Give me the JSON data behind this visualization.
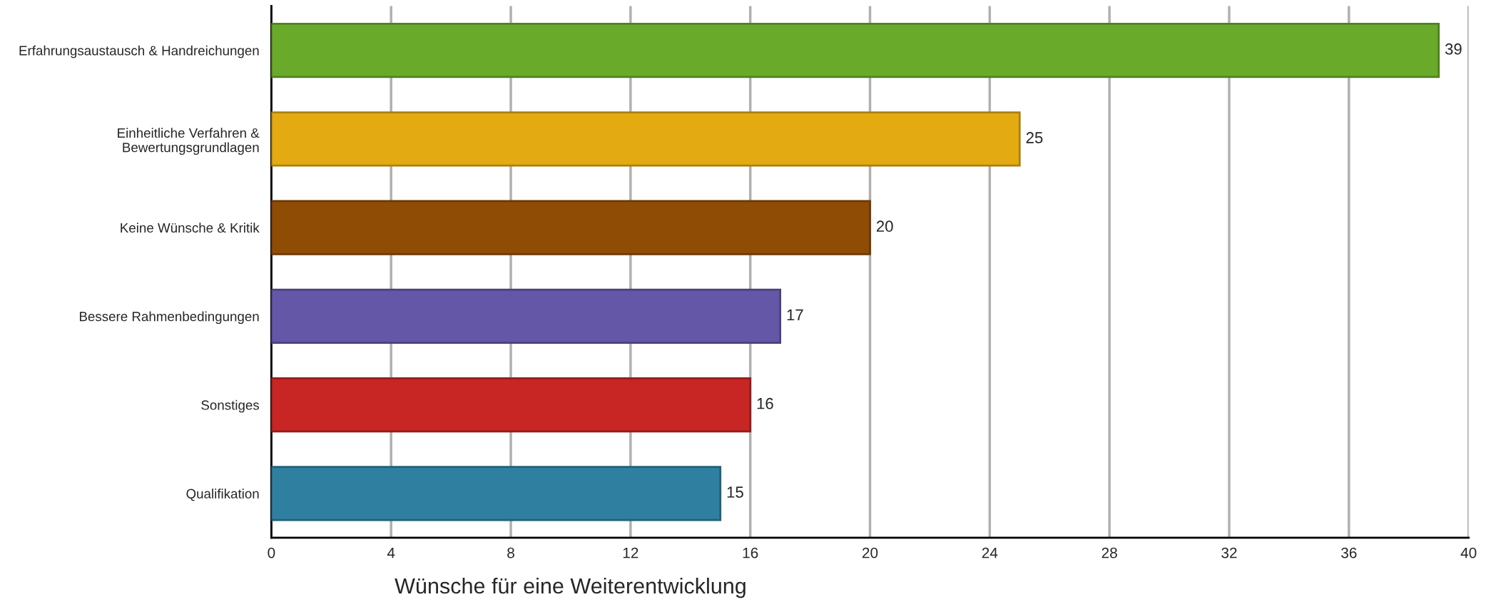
{
  "chart_data": {
    "type": "bar",
    "orientation": "horizontal",
    "categories": [
      "Erfahrungsaustausch & Handreichungen",
      "Einheitliche Verfahren &\nBewertungsgrundlagen",
      "Keine Wünsche & Kritik",
      "Bessere Rahmenbedingungen",
      "Sonstiges",
      "Qualifikation"
    ],
    "values": [
      39,
      25,
      20,
      17,
      16,
      15
    ],
    "colors": [
      "#6aaa2a",
      "#e3aa12",
      "#8f4c05",
      "#6457a8",
      "#c82525",
      "#2f80a0"
    ],
    "xlabel": "Wünsche für eine Weiterentwicklung",
    "xlim": [
      0,
      40
    ],
    "xticks": [
      0,
      4,
      8,
      12,
      16,
      20,
      24,
      28,
      32,
      36,
      40
    ],
    "grid": "x",
    "data_labels": true
  }
}
